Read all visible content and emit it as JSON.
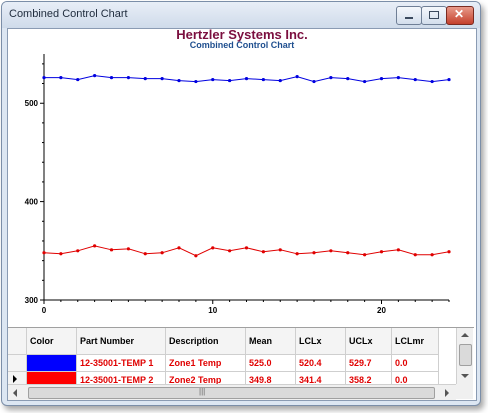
{
  "window": {
    "title": "Combined Control Chart"
  },
  "chart_data": {
    "type": "line",
    "title": "Hertzler Systems Inc.",
    "subtitle": "Combined Control Chart",
    "xlabel": "",
    "ylabel": "",
    "xlim": [
      0,
      24
    ],
    "ylim": [
      300,
      550
    ],
    "x_ticks": [
      "0",
      "10",
      "20"
    ],
    "y_ticks": [
      "300",
      "400",
      "500"
    ],
    "grid": false,
    "x": [
      0,
      1,
      2,
      3,
      4,
      5,
      6,
      7,
      8,
      9,
      10,
      11,
      12,
      13,
      14,
      15,
      16,
      17,
      18,
      19,
      20,
      21,
      22,
      23,
      24
    ],
    "series": [
      {
        "color": "#0000e0",
        "values": [
          526,
          526,
          524,
          528,
          526,
          526,
          525,
          525,
          523,
          522,
          524,
          523,
          525,
          524,
          523,
          527,
          522,
          526,
          525,
          522,
          525,
          526,
          524,
          522,
          524
        ]
      },
      {
        "color": "#e00000",
        "values": [
          348,
          347,
          350,
          355,
          351,
          352,
          347,
          348,
          353,
          345,
          353,
          350,
          353,
          349,
          351,
          347,
          348,
          350,
          348,
          346,
          349,
          351,
          346,
          346,
          349
        ]
      }
    ]
  },
  "grid": {
    "columns": [
      "Color",
      "Part Number",
      "Description",
      "Mean",
      "LCLx",
      "UCLx",
      "LCLmr"
    ],
    "rows": [
      {
        "color": "#0000ff",
        "part_number": "12-35001-TEMP 1",
        "description": "Zone1 Temp",
        "mean": "525.0",
        "lclx": "520.4",
        "uclx": "529.7",
        "lclmr": "0.0"
      },
      {
        "color": "#ff0000",
        "part_number": "12-35001-TEMP 2",
        "description": "Zone2 Temp",
        "mean": "349.8",
        "lclx": "341.4",
        "uclx": "358.2",
        "lclmr": "0.0"
      }
    ]
  }
}
